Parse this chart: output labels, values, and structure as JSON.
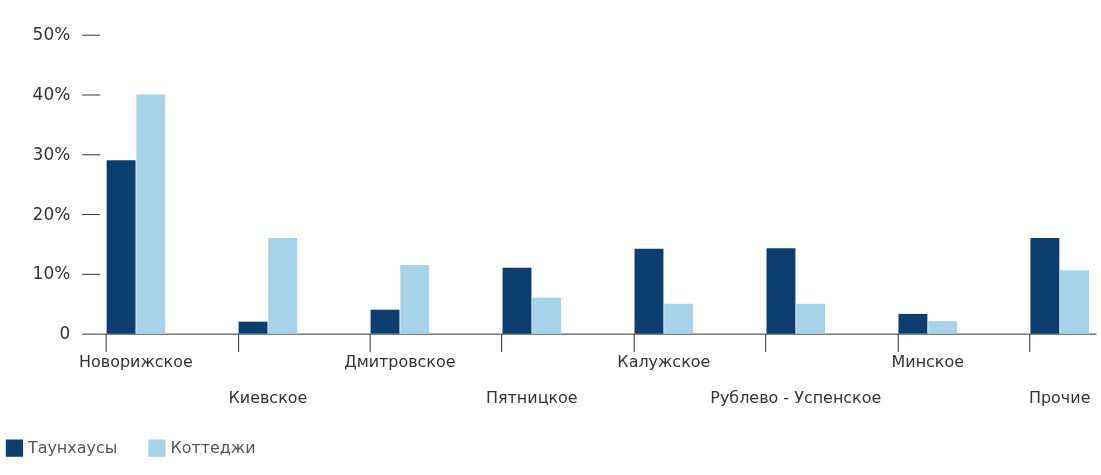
{
  "chart_data": {
    "type": "bar",
    "categories": [
      "Новорижское",
      "Киевское",
      "Дмитровское",
      "Пятницкое",
      "Калужское",
      "Рублево - Успенское",
      "Минское",
      "Прочие"
    ],
    "series": [
      {
        "name": "Таунхаусы",
        "color": "#0b3d6e",
        "values": [
          29,
          2,
          4,
          11,
          14.2,
          14.3,
          3.3,
          16
        ]
      },
      {
        "name": "Коттеджи",
        "color": "#a6d3ea",
        "values": [
          40,
          16,
          11.5,
          6,
          5,
          5,
          2.1,
          10.6
        ]
      }
    ],
    "ylim": [
      0,
      50
    ],
    "yticks": [
      {
        "value": 0,
        "label": "0"
      },
      {
        "value": 10,
        "label": "10%"
      },
      {
        "value": 20,
        "label": "20%"
      },
      {
        "value": 30,
        "label": "30%"
      },
      {
        "value": 40,
        "label": "40%"
      },
      {
        "value": 50,
        "label": "50%"
      }
    ],
    "grid": false,
    "legend": "bottom left"
  }
}
